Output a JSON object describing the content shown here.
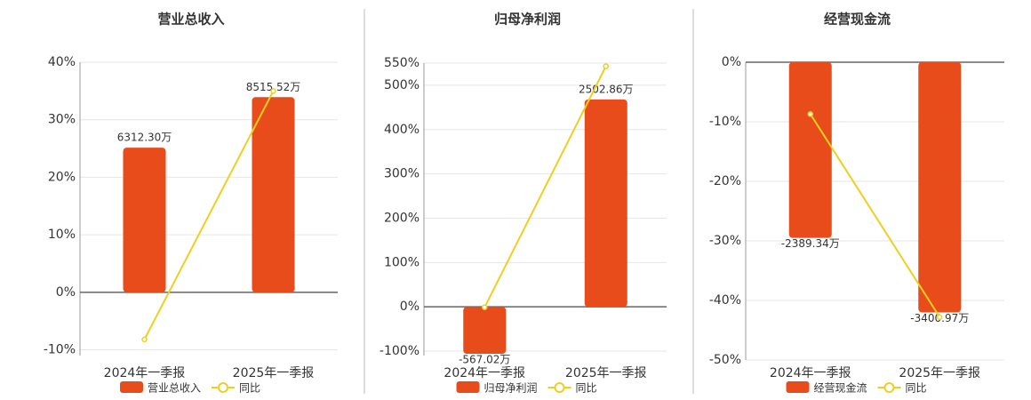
{
  "chart_data": [
    {
      "type": "bar-line",
      "title": "营业总收入",
      "categories": [
        "2024年一季报",
        "2025年一季报"
      ],
      "series": [
        {
          "name": "营业总收入",
          "type": "bar",
          "axis": "y2",
          "color": "#e84c1a",
          "values": [
            6312.3,
            8515.52
          ],
          "value_labels": [
            "6312.30万",
            "8515.52万"
          ]
        },
        {
          "name": "同比",
          "type": "line",
          "color": "#ecd020",
          "values": [
            -8.2,
            35.0
          ]
        }
      ],
      "ylim": [
        -11,
        40
      ],
      "yticks": [
        {
          "value": -10,
          "label": "-10%"
        },
        {
          "value": 0,
          "label": "0%"
        },
        {
          "value": 10,
          "label": "10%"
        },
        {
          "value": 20,
          "label": "20%"
        },
        {
          "value": 30,
          "label": "30%"
        },
        {
          "value": 40,
          "label": "40%"
        }
      ],
      "y2lim": [
        -2760,
        10040
      ],
      "grid": true
    },
    {
      "type": "bar-line",
      "title": "归母净利润",
      "categories": [
        "2024年一季报",
        "2025年一季报"
      ],
      "series": [
        {
          "name": "归母净利润",
          "type": "bar",
          "axis": "y2",
          "color": "#e84c1a",
          "values": [
            -567.02,
            2502.86
          ],
          "value_labels": [
            "-567.02万",
            "2502.86万"
          ]
        },
        {
          "name": "同比",
          "type": "line",
          "color": "#ecd020",
          "values": [
            -1,
            543
          ]
        }
      ],
      "ylim": [
        -110,
        550
      ],
      "yticks": [
        {
          "value": -100,
          "label": "-100%"
        },
        {
          "value": 0,
          "label": "0%"
        },
        {
          "value": 100,
          "label": "100%"
        },
        {
          "value": 200,
          "label": "200%"
        },
        {
          "value": 300,
          "label": "300%"
        },
        {
          "value": 400,
          "label": "400%"
        },
        {
          "value": 500,
          "label": "500%"
        },
        {
          "value": 550,
          "label": "550%"
        }
      ],
      "y2lim": [
        -588,
        2942
      ],
      "grid": true
    },
    {
      "type": "bar-line",
      "title": "经营现金流",
      "categories": [
        "2024年一季报",
        "2025年一季报"
      ],
      "series": [
        {
          "name": "经营现金流",
          "type": "bar",
          "axis": "y2",
          "color": "#e84c1a",
          "values": [
            -2389.34,
            -3400.97
          ],
          "value_labels": [
            "-2389.34万",
            "-3400.97万"
          ]
        },
        {
          "name": "同比",
          "type": "line",
          "color": "#ecd020",
          "values": [
            -8.7,
            -42.8
          ]
        }
      ],
      "ylim": [
        -50,
        0
      ],
      "yticks": [
        {
          "value": -50,
          "label": "-50%"
        },
        {
          "value": -40,
          "label": "-40%"
        },
        {
          "value": -30,
          "label": "-30%"
        },
        {
          "value": -20,
          "label": "-20%"
        },
        {
          "value": -10,
          "label": "-10%"
        },
        {
          "value": 0,
          "label": "0%"
        }
      ],
      "y2lim": [
        -4050,
        0
      ],
      "grid": true
    }
  ]
}
